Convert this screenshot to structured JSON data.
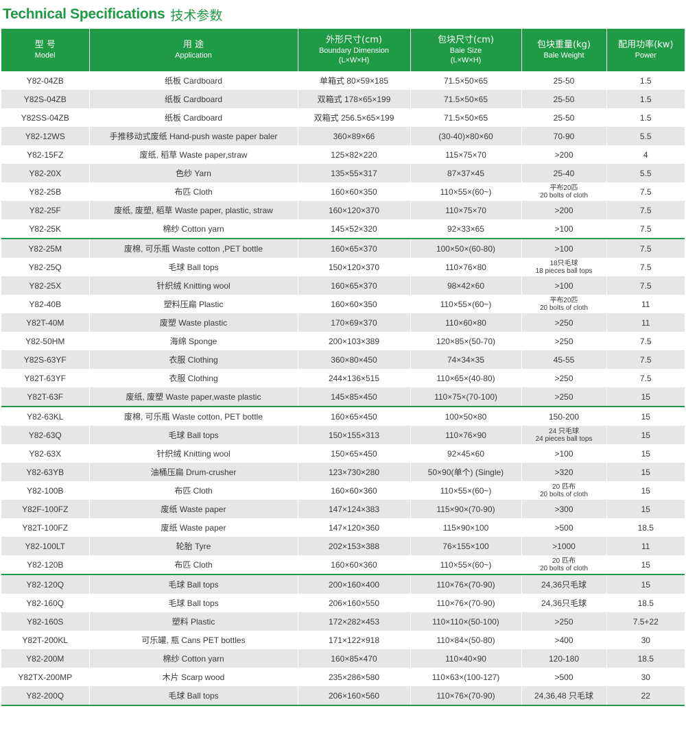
{
  "title": {
    "en": "Technical Specifications",
    "cn": "技术参数"
  },
  "headers": [
    {
      "cn": "型 号",
      "en": [
        "Model"
      ]
    },
    {
      "cn": "用 途",
      "en": [
        "Application"
      ]
    },
    {
      "cn": "外形尺寸(cm)",
      "en": [
        "Boundary Dimension",
        "(L×W×H)"
      ]
    },
    {
      "cn": "包块尺寸(cm)",
      "en": [
        "Bale Size",
        "(L×W×H)"
      ]
    },
    {
      "cn": "包块重量(kg)",
      "en": [
        "Bale Weight"
      ]
    },
    {
      "cn": "配用功率(kw)",
      "en": [
        "Power"
      ]
    }
  ],
  "rows": [
    {
      "model": "Y82-04ZB",
      "app": "纸板 Cardboard",
      "dim": "单箱式 80×59×185",
      "bale": "71.5×50×65",
      "weight": [
        "25-50"
      ],
      "power": "1.5"
    },
    {
      "model": "Y82S-04ZB",
      "app": "纸板 Cardboard",
      "dim": "双箱式 178×65×199",
      "bale": "71.5×50×65",
      "weight": [
        "25-50"
      ],
      "power": "1.5"
    },
    {
      "model": "Y82SS-04ZB",
      "app": "纸板 Cardboard",
      "dim": "双箱式 256.5×65×199",
      "bale": "71.5×50×65",
      "weight": [
        "25-50"
      ],
      "power": "1.5"
    },
    {
      "model": "Y82-12WS",
      "app": "手推移动式废纸 Hand-push waste paper baler",
      "dim": "360×89×66",
      "bale": "(30-40)×80×60",
      "weight": [
        "70-90"
      ],
      "power": "5.5"
    },
    {
      "model": "Y82-15FZ",
      "app": "废纸, 稻草 Waste paper,straw",
      "dim": "125×82×220",
      "bale": "115×75×70",
      "weight": [
        ">200"
      ],
      "power": "4"
    },
    {
      "model": "Y82-20X",
      "app": "色纱 Yarn",
      "dim": "135×55×317",
      "bale": "87×37×45",
      "weight": [
        "25-40"
      ],
      "power": "5.5"
    },
    {
      "model": "Y82-25B",
      "app": "布匹 Cloth",
      "dim": "160×60×350",
      "bale": "110×55×(60~)",
      "weight": [
        "平布20匹",
        "20 bolts of cloth"
      ],
      "power": "7.5"
    },
    {
      "model": "Y82-25F",
      "app": "废纸, 废塑, 稻草 Waste paper, plastic, straw",
      "dim": "160×120×370",
      "bale": "110×75×70",
      "weight": [
        ">200"
      ],
      "power": "7.5"
    },
    {
      "model": "Y82-25K",
      "app": "棉纱 Cotton yarn",
      "dim": "145×52×320",
      "bale": "92×33×65",
      "weight": [
        ">100"
      ],
      "power": "7.5"
    },
    {
      "model": "Y82-25M",
      "app": "废棉, 可乐瓶 Waste cotton ,PET bottle",
      "dim": "160×65×370",
      "bale": "100×50×(60-80)",
      "weight": [
        ">100"
      ],
      "power": "7.5",
      "sep": true
    },
    {
      "model": "Y82-25Q",
      "app": "毛球 Ball tops",
      "dim": "150×120×370",
      "bale": "110×76×80",
      "weight": [
        "18只毛球",
        "18 pieces ball tops"
      ],
      "power": "7.5"
    },
    {
      "model": "Y82-25X",
      "app": "针织绒 Knitting wool",
      "dim": "160×65×370",
      "bale": "98×42×60",
      "weight": [
        ">100"
      ],
      "power": "7.5"
    },
    {
      "model": "Y82-40B",
      "app": "塑料压扁 Plastic",
      "dim": "160×60×350",
      "bale": "110×55×(60~)",
      "weight": [
        "平布20匹",
        "20 bolts of cloth"
      ],
      "power": "11"
    },
    {
      "model": "Y82T-40M",
      "app": "废塑 Waste plastic",
      "dim": "170×69×370",
      "bale": "110×60×80",
      "weight": [
        ">250"
      ],
      "power": "11"
    },
    {
      "model": "Y82-50HM",
      "app": "海绵 Sponge",
      "dim": "200×103×389",
      "bale": "120×85×(50-70)",
      "weight": [
        ">250"
      ],
      "power": "7.5"
    },
    {
      "model": "Y82S-63YF",
      "app": "衣服 Clothing",
      "dim": "360×80×450",
      "bale": "74×34×35",
      "weight": [
        "45-55"
      ],
      "power": "7.5"
    },
    {
      "model": "Y82T-63YF",
      "app": "衣服 Clothing",
      "dim": "244×136×515",
      "bale": "110×65×(40-80)",
      "weight": [
        ">250"
      ],
      "power": "7.5"
    },
    {
      "model": "Y82T-63F",
      "app": "废纸, 废塑 Waste paper,waste plastic",
      "dim": "145×85×450",
      "bale": "110×75×(70-100)",
      "weight": [
        ">250"
      ],
      "power": "15"
    },
    {
      "model": "Y82-63KL",
      "app": "废棉, 可乐瓶 Waste cotton, PET bottle",
      "dim": "160×65×450",
      "bale": "100×50×80",
      "weight": [
        "150-200"
      ],
      "power": "15",
      "sep": true
    },
    {
      "model": "Y82-63Q",
      "app": "毛球 Ball tops",
      "dim": "150×155×313",
      "bale": "110×76×90",
      "weight": [
        "24 只毛球",
        "24 pieces ball tops"
      ],
      "power": "15"
    },
    {
      "model": "Y82-63X",
      "app": "针织绒 Knitting wool",
      "dim": "150×65×450",
      "bale": "92×45×60",
      "weight": [
        ">100"
      ],
      "power": "15"
    },
    {
      "model": "Y82-63YB",
      "app": "油桶压扁 Drum-crusher",
      "dim": "123×730×280",
      "bale": "50×90(单个) (Single)",
      "weight": [
        ">320"
      ],
      "power": "15"
    },
    {
      "model": "Y82-100B",
      "app": "布匹 Cloth",
      "dim": "160×60×360",
      "bale": "110×55×(60~)",
      "weight": [
        "20 匹布",
        "20 bolts of cloth"
      ],
      "power": "15"
    },
    {
      "model": "Y82F-100FZ",
      "app": "废纸 Waste paper",
      "dim": "147×124×383",
      "bale": "115×90×(70-90)",
      "weight": [
        ">300"
      ],
      "power": "15"
    },
    {
      "model": "Y82T-100FZ",
      "app": "废纸 Waste paper",
      "dim": "147×120×360",
      "bale": "115×90×100",
      "weight": [
        ">500"
      ],
      "power": "18.5"
    },
    {
      "model": "Y82-100LT",
      "app": "轮胎 Tyre",
      "dim": "202×153×388",
      "bale": "76×155×100",
      "weight": [
        ">1000"
      ],
      "power": "11"
    },
    {
      "model": "Y82-120B",
      "app": "布匹 Cloth",
      "dim": "160×60×360",
      "bale": "110×55×(60~)",
      "weight": [
        "20 匹布",
        "20 bolts of cloth"
      ],
      "power": "15"
    },
    {
      "model": "Y82-120Q",
      "app": "毛球 Ball tops",
      "dim": "200×160×400",
      "bale": "110×76×(70-90)",
      "weight": [
        "24,36只毛球"
      ],
      "power": "15",
      "sep": true
    },
    {
      "model": "Y82-160Q",
      "app": "毛球 Ball tops",
      "dim": "206×160×550",
      "bale": "110×76×(70-90)",
      "weight": [
        "24,36只毛球"
      ],
      "power": "18.5"
    },
    {
      "model": "Y82-160S",
      "app": "塑料 Plastic",
      "dim": "172×282×453",
      "bale": "110×110×(50-100)",
      "weight": [
        ">250"
      ],
      "power": "7.5+22"
    },
    {
      "model": "Y82T-200KL",
      "app": "可乐罐, 瓶 Cans PET bottles",
      "dim": "171×122×918",
      "bale": "110×84×(50-80)",
      "weight": [
        ">400"
      ],
      "power": "30"
    },
    {
      "model": "Y82-200M",
      "app": "棉纱 Cotton yarn",
      "dim": "160×85×470",
      "bale": "110×40×90",
      "weight": [
        "120-180"
      ],
      "power": "18.5"
    },
    {
      "model": "Y82TX-200MP",
      "app": "木片 Scarp wood",
      "dim": "235×286×580",
      "bale": "110×63×(100-127)",
      "weight": [
        ">500"
      ],
      "power": "30"
    },
    {
      "model": "Y82-200Q",
      "app": "毛球 Ball tops",
      "dim": "206×160×560",
      "bale": "110×76×(70-90)",
      "weight": [
        "24,36,48 只毛球"
      ],
      "power": "22"
    }
  ],
  "colors": {
    "accent": "#1f9a45",
    "stripe": "#e6e6e6"
  }
}
